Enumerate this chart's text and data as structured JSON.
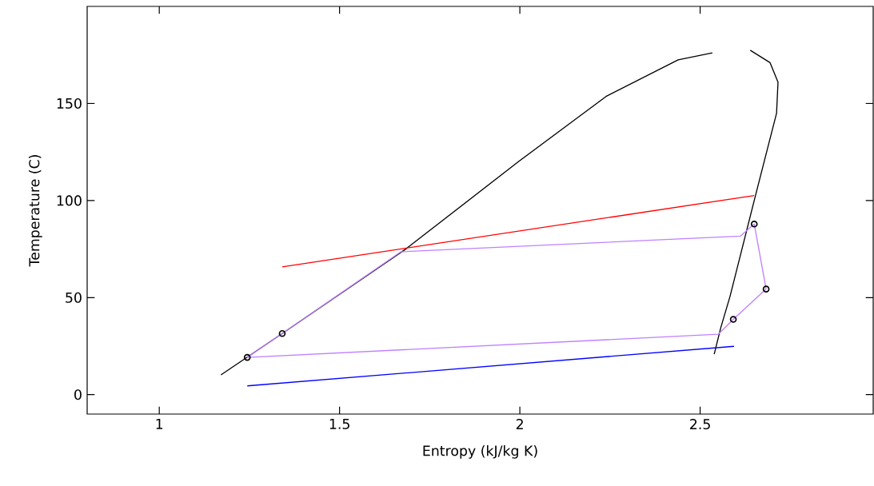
{
  "chart_data": {
    "type": "line",
    "xlabel": "Entropy (kJ/kg K)",
    "ylabel": "Temperature (C)",
    "xlim": [
      0.8,
      2.98
    ],
    "ylim": [
      -10,
      200
    ],
    "xticks": [
      1,
      1.5,
      2,
      2.5
    ],
    "yticks": [
      0,
      50,
      100,
      150
    ],
    "grid": false,
    "series": [
      {
        "color": "#000000",
        "x": [
          1.171,
          1.341,
          1.685,
          1.996,
          2.239,
          2.439,
          2.534,
          null,
          2.639,
          2.694,
          2.716,
          2.712,
          2.683,
          2.65,
          2.616,
          2.583,
          2.557,
          2.539
        ],
        "values": [
          10.2,
          31.5,
          75.2,
          120,
          153.6,
          172.5,
          176.1,
          null,
          177.4,
          171,
          161,
          145,
          124,
          100,
          75,
          50.7,
          34.3,
          20.8
        ]
      },
      {
        "color": "#ff0000",
        "x": [
          1.341,
          2.65
        ],
        "values": [
          65.8,
          102.6
        ]
      },
      {
        "color": "#0000ff",
        "x": [
          1.244,
          2.594
        ],
        "values": [
          4.5,
          24.9
        ]
      },
      {
        "color": "#bf80ff",
        "x": [
          1.244,
          1.341,
          1.67,
          2.612,
          2.65,
          2.683
        ],
        "values": [
          19.2,
          31.5,
          73.6,
          81.7,
          87.9,
          54.4
        ]
      },
      {
        "color": "#bf80ff",
        "x": [
          1.244,
          2.55,
          2.592,
          2.683
        ],
        "values": [
          19.2,
          31.1,
          38.8,
          54.4
        ]
      },
      {
        "type": "scatter",
        "marker": "circle",
        "color": "#000000",
        "x": [
          1.244,
          1.341,
          2.65,
          2.683,
          2.592
        ],
        "values": [
          19.2,
          31.5,
          87.9,
          54.4,
          38.8
        ]
      }
    ]
  }
}
